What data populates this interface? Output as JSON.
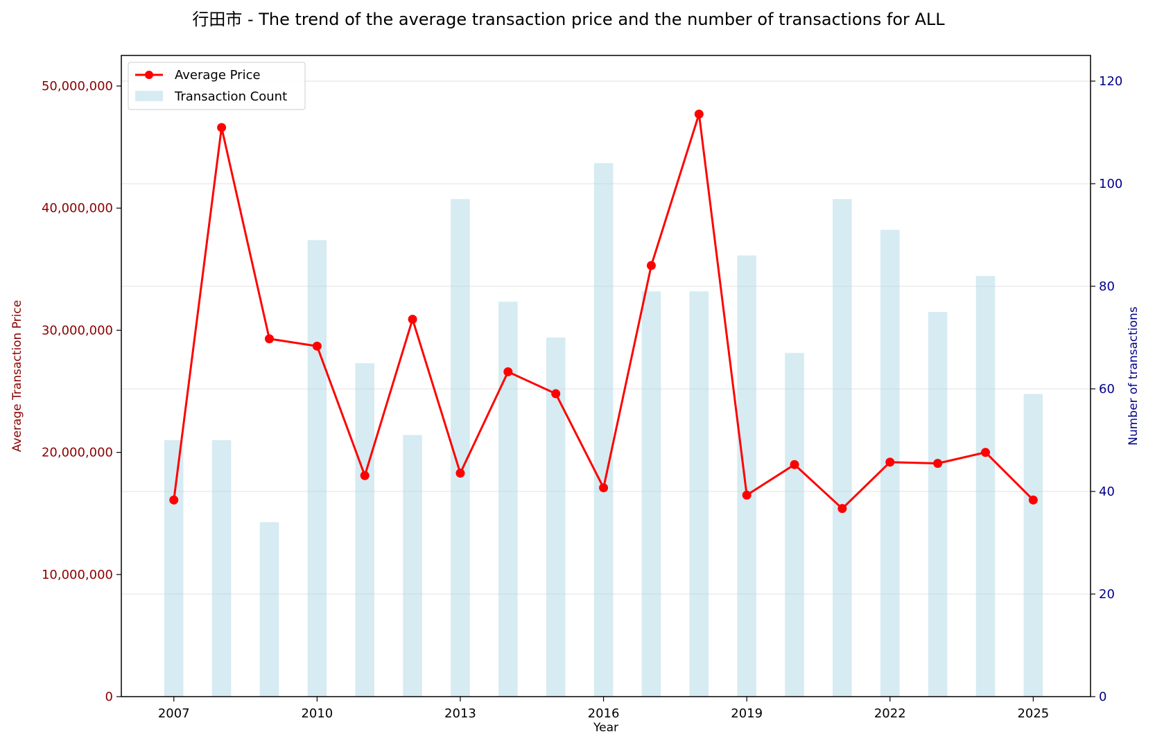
{
  "chart_data": {
    "type": "bar+line",
    "title": "行田市 - The trend of the average transaction price and the number of transactions for ALL",
    "xlabel": "Year",
    "ylabel_left": "Average Transaction Price",
    "ylabel_right": "Number of transactions",
    "years": [
      2007,
      2008,
      2009,
      2010,
      2011,
      2012,
      2013,
      2014,
      2015,
      2016,
      2017,
      2018,
      2019,
      2020,
      2021,
      2022,
      2023,
      2024,
      2025
    ],
    "x_ticks": [
      "2007",
      "2010",
      "2013",
      "2016",
      "2019",
      "2022",
      "2025"
    ],
    "xlim": [
      2005.9,
      2026.2
    ],
    "ylim_left": [
      0,
      52500000
    ],
    "ylim_right": [
      0,
      125
    ],
    "y_ticks_left": [
      0,
      10000000,
      20000000,
      30000000,
      40000000,
      50000000
    ],
    "y_tick_labels_left": [
      "0",
      "10,000,000",
      "20,000,000",
      "30,000,000",
      "40,000,000",
      "50,000,000"
    ],
    "y_ticks_right": [
      0,
      20,
      40,
      60,
      80,
      100,
      120
    ],
    "y_tick_labels_right": [
      "0",
      "20",
      "40",
      "60",
      "80",
      "100",
      "120"
    ],
    "grid": "horizontal",
    "legend_position": "top-left",
    "series": [
      {
        "name": "Average Price",
        "kind": "line",
        "axis": "left",
        "color": "#ff0000",
        "values": [
          16100000,
          46600000,
          29300000,
          28700000,
          18100000,
          30900000,
          18300000,
          26600000,
          24800000,
          17100000,
          35300000,
          47700000,
          16500000,
          19000000,
          15400000,
          19200000,
          19100000,
          20000000,
          16100000
        ]
      },
      {
        "name": "Transaction Count",
        "kind": "bar",
        "axis": "right",
        "color": "#add8e6",
        "values": [
          50,
          50,
          34,
          89,
          65,
          51,
          97,
          77,
          70,
          104,
          79,
          79,
          86,
          67,
          97,
          91,
          75,
          82,
          59
        ]
      }
    ],
    "colors": {
      "left_axis": "#8b0000",
      "right_axis": "#00008b",
      "grid": "#e0e0e0"
    }
  }
}
